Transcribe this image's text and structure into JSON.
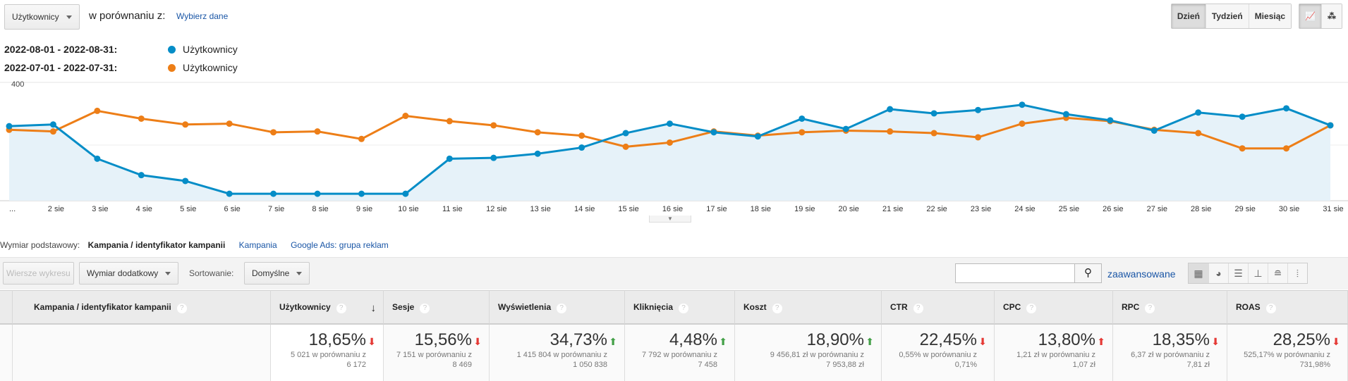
{
  "header": {
    "metric_select": "Użytkownicy",
    "compare_label": "w porównaniu z:",
    "choose_link": "Wybierz dane"
  },
  "granularity": {
    "day": "Dzień",
    "week": "Tydzień",
    "month": "Miesiąc"
  },
  "legend": [
    {
      "range": "2022-08-01 - 2022-08-31:",
      "label": "Użytkownicy",
      "color": "#058dc7"
    },
    {
      "range": "2022-07-01 - 2022-07-31:",
      "label": "Użytkownicy",
      "color": "#ed7e17"
    }
  ],
  "chart_data": {
    "type": "line",
    "y_ticks": [
      "400",
      "200"
    ],
    "ylim": [
      0,
      400
    ],
    "categories": [
      "...",
      "2 sie",
      "3 sie",
      "4 sie",
      "5 sie",
      "6 sie",
      "7 sie",
      "8 sie",
      "9 sie",
      "10 sie",
      "11 sie",
      "12 sie",
      "13 sie",
      "14 sie",
      "15 sie",
      "16 sie",
      "17 sie",
      "18 sie",
      "19 sie",
      "20 sie",
      "21 sie",
      "22 sie",
      "23 sie",
      "24 sie",
      "25 sie",
      "26 sie",
      "27 sie",
      "28 sie",
      "29 sie",
      "30 sie",
      "31 sie"
    ],
    "series": [
      {
        "name": "2022-08-01 - 2022-08-31: Użytkownicy",
        "color": "#058dc7",
        "values": [
          268,
          274,
          151,
          92,
          71,
          25,
          25,
          25,
          25,
          25,
          151,
          154,
          169,
          191,
          243,
          277,
          246,
          231,
          295,
          258,
          329,
          314,
          326,
          345,
          311,
          289,
          252,
          317,
          302,
          332,
          271
        ]
      },
      {
        "name": "2022-07-01 - 2022-07-31: Użytkownicy",
        "color": "#ed7e17",
        "values": [
          255,
          249,
          323,
          295,
          274,
          277,
          246,
          249,
          222,
          305,
          286,
          271,
          246,
          234,
          194,
          209,
          249,
          234,
          246,
          252,
          249,
          243,
          228,
          277,
          298,
          286,
          255,
          243,
          188,
          188,
          271
        ]
      }
    ]
  },
  "dimension": {
    "label": "Wymiar podstawowy:",
    "active": "Kampania / identyfikator kampanii",
    "links": [
      "Kampania",
      "Google Ads: grupa reklam"
    ]
  },
  "toolbar": {
    "plot_rows": "Wiersze wykresu",
    "secondary": "Wymiar dodatkowy",
    "sort_label": "Sortowanie:",
    "sort_value": "Domyślne",
    "search_placeholder": "",
    "advanced": "zaawansowane"
  },
  "table": {
    "first_col": "Kampania / identyfikator kampanii",
    "columns": [
      {
        "h": "Użytkownicy",
        "pct": "18,65%",
        "dir": "down",
        "c": "#e53935",
        "s1": "5 021 w porównaniu z",
        "s2": "6 172"
      },
      {
        "h": "Sesje",
        "pct": "15,56%",
        "dir": "down",
        "c": "#e53935",
        "s1": "7 151 w porównaniu z",
        "s2": "8 469"
      },
      {
        "h": "Wyświetlenia",
        "pct": "34,73%",
        "dir": "up",
        "c": "#43a047",
        "s1": "1 415 804 w porównaniu z",
        "s2": "1 050 838"
      },
      {
        "h": "Kliknięcia",
        "pct": "4,48%",
        "dir": "up",
        "c": "#43a047",
        "s1": "7 792 w porównaniu z",
        "s2": "7 458"
      },
      {
        "h": "Koszt",
        "pct": "18,90%",
        "dir": "up",
        "c": "#43a047",
        "s1": "9 456,81 zł w porównaniu z",
        "s2": "7 953,88 zł"
      },
      {
        "h": "CTR",
        "pct": "22,45%",
        "dir": "down",
        "c": "#e53935",
        "s1": "0,55% w porównaniu z",
        "s2": "0,71%"
      },
      {
        "h": "CPC",
        "pct": "13,80%",
        "dir": "up",
        "c": "#e53935",
        "s1": "1,21 zł w porównaniu z",
        "s2": "1,07 zł"
      },
      {
        "h": "RPC",
        "pct": "18,35%",
        "dir": "down",
        "c": "#e53935",
        "s1": "6,37 zł w porównaniu z",
        "s2": "7,81 zł"
      },
      {
        "h": "ROAS",
        "pct": "28,25%",
        "dir": "down",
        "c": "#e53935",
        "s1": "525,17% w porównaniu z",
        "s2": "731,98%"
      }
    ]
  }
}
